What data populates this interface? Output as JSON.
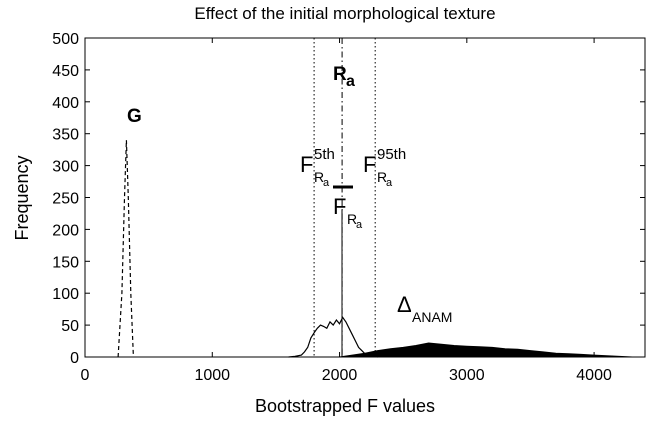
{
  "chart_data": {
    "type": "line",
    "title": "Effect of the initial morphological texture",
    "xlabel": "Bootstrapped F values",
    "ylabel": "Frequency",
    "xlim": [
      0,
      4400
    ],
    "xticks": [
      0,
      1000,
      2000,
      3000,
      4000
    ],
    "ylim": [
      0,
      500
    ],
    "yticks": [
      0,
      50,
      100,
      150,
      200,
      250,
      300,
      350,
      400,
      450,
      500
    ],
    "grid": false,
    "series": [
      {
        "color": "#000000",
        "style": "dashed",
        "x": [
          260,
          290,
          310,
          325,
          340,
          360,
          380
        ],
        "values": [
          0,
          100,
          250,
          340,
          250,
          100,
          0
        ]
      },
      {
        "color": "#000000",
        "style": "solid",
        "x": [
          1600,
          1650,
          1700,
          1725,
          1750,
          1775,
          1800,
          1825,
          1850,
          1875,
          1900,
          1925,
          1950,
          1975,
          2000,
          2025,
          2050,
          2075,
          2100,
          2125,
          2150,
          2175,
          2200,
          2250,
          2300
        ],
        "values": [
          0,
          1,
          3,
          8,
          15,
          30,
          38,
          45,
          50,
          48,
          45,
          55,
          50,
          58,
          52,
          62,
          55,
          45,
          35,
          25,
          15,
          10,
          5,
          2,
          0
        ]
      },
      {
        "color": "#000000",
        "style": "filled",
        "x": [
          2000,
          2100,
          2200,
          2300,
          2400,
          2500,
          2600,
          2700,
          2800,
          2900,
          3000,
          3100,
          3200,
          3300,
          3400,
          3500,
          3600,
          3700,
          3800,
          3900,
          4000,
          4100,
          4200,
          4300
        ],
        "values": [
          0,
          3,
          6,
          10,
          13,
          15,
          18,
          22,
          20,
          18,
          17,
          16,
          15,
          13,
          12,
          10,
          8,
          6,
          5,
          4,
          3,
          2,
          1,
          0
        ]
      }
    ],
    "vlines": [
      {
        "x": 1800,
        "style": "dotted"
      },
      {
        "x": 2280,
        "style": "dotted"
      },
      {
        "x": 2020,
        "style": "dashdot"
      }
    ],
    "annotations": [
      {
        "text": "G",
        "bold": true
      },
      {
        "text": "R",
        "sub": "a",
        "bold": true
      },
      {
        "text": "F",
        "sup": "5th",
        "sub": "R",
        "subsub": "a"
      },
      {
        "text": "F",
        "sup": "95th",
        "sub": "R",
        "subsub": "a"
      },
      {
        "text": "F",
        "sub": "R",
        "subsub": "a",
        "overline": true
      },
      {
        "text": "Δ",
        "sub": "ANAM"
      }
    ]
  }
}
